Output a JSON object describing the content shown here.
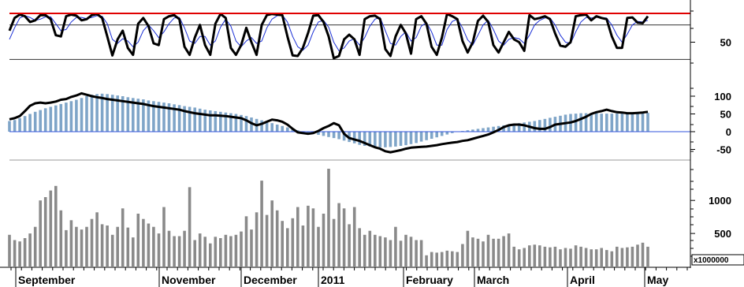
{
  "chart_data": [
    {
      "type": "line",
      "panel": "oscillator",
      "ylim": [
        0,
        100
      ],
      "yticks": [
        "50"
      ],
      "reference_lines": [
        100,
        80,
        20
      ],
      "colors": {
        "main": "#000000",
        "signal": "#1a2fd6",
        "ceiling": "#e00000",
        "guides": "#333333"
      },
      "series": [
        {
          "values": [
            70,
            92,
            98,
            95,
            85,
            88,
            97,
            97,
            90,
            62,
            60,
            95,
            98,
            96,
            88,
            90,
            97,
            99,
            92,
            60,
            27,
            55,
            70,
            40,
            28,
            82,
            92,
            78,
            48,
            45,
            90,
            95,
            97,
            90,
            42,
            28,
            58,
            80,
            45,
            28,
            82,
            99,
            92,
            40,
            28,
            45,
            75,
            50,
            28,
            80,
            97,
            99,
            98,
            97,
            60,
            27,
            26,
            40,
            66,
            96,
            97,
            85,
            60,
            22,
            26,
            55,
            63,
            55,
            28,
            90,
            95,
            96,
            90,
            38,
            26,
            60,
            80,
            65,
            30,
            90,
            95,
            82,
            42,
            28,
            58,
            99,
            95,
            90,
            52,
            32,
            50,
            87,
            96,
            85,
            45,
            32,
            50,
            68,
            55,
            50,
            35,
            97,
            90,
            92,
            95,
            90,
            65,
            44,
            42,
            50,
            95,
            97,
            98,
            88,
            95,
            92,
            90,
            60,
            40,
            40,
            92,
            93,
            84,
            83,
            95
          ]
        },
        {
          "values": [
            55,
            75,
            92,
            96,
            93,
            88,
            90,
            94,
            94,
            82,
            70,
            72,
            85,
            93,
            93,
            91,
            93,
            96,
            95,
            82,
            55,
            48,
            56,
            52,
            42,
            50,
            70,
            80,
            70,
            58,
            68,
            82,
            92,
            93,
            75,
            52,
            48,
            60,
            60,
            45,
            52,
            76,
            90,
            78,
            52,
            42,
            52,
            58,
            48,
            52,
            75,
            90,
            96,
            97,
            85,
            60,
            42,
            36,
            45,
            68,
            85,
            88,
            76,
            50,
            35,
            40,
            52,
            56,
            45,
            58,
            78,
            90,
            93,
            70,
            48,
            45,
            60,
            68,
            52,
            58,
            78,
            84,
            68,
            45,
            45,
            72,
            86,
            90,
            75,
            54,
            45,
            62,
            80,
            88,
            72,
            52,
            45,
            55,
            58,
            56,
            48,
            62,
            80,
            88,
            92,
            92,
            80,
            62,
            50,
            48,
            68,
            85,
            93,
            92,
            93,
            93,
            92,
            80,
            62,
            50,
            64,
            80,
            86,
            85,
            88
          ]
        }
      ]
    },
    {
      "type": "bar",
      "panel": "macd",
      "ylim": [
        -80,
        140
      ],
      "yticks": [
        "100",
        "50",
        "0",
        "-50"
      ],
      "colors": {
        "histogram": "#7fa5c8",
        "line": "#000000",
        "zero": "#3355dd"
      },
      "series": [
        {
          "values": [
            30,
            33,
            38,
            44,
            50,
            56,
            61,
            66,
            70,
            74,
            78,
            82,
            86,
            90,
            95,
            100,
            104,
            106,
            107,
            106,
            104,
            102,
            100,
            97,
            95,
            93,
            91,
            88,
            86,
            84,
            82,
            80,
            77,
            75,
            72,
            70,
            68,
            65,
            62,
            60,
            58,
            56,
            54,
            52,
            50,
            47,
            44,
            40,
            36,
            32,
            28,
            24,
            20,
            16,
            12,
            8,
            4,
            0,
            -3,
            -6,
            -9,
            -12,
            -15,
            -18,
            -21,
            -25,
            -29,
            -33,
            -37,
            -40,
            -42,
            -43,
            -44,
            -44,
            -43,
            -42,
            -40,
            -38,
            -35,
            -32,
            -28,
            -24,
            -20,
            -16,
            -12,
            -8,
            -4,
            0,
            2,
            4,
            6,
            8,
            10,
            12,
            14,
            16,
            18,
            20,
            22,
            24,
            26,
            28,
            30,
            33,
            36,
            39,
            42,
            45,
            48,
            50,
            51,
            52,
            52,
            52,
            52,
            51,
            51,
            51,
            51,
            51,
            51,
            51,
            51,
            52,
            53
          ]
        },
        {
          "values": [
            35,
            38,
            44,
            58,
            73,
            80,
            82,
            80,
            82,
            85,
            90,
            92,
            98,
            102,
            108,
            104,
            100,
            97,
            95,
            92,
            90,
            88,
            86,
            84,
            82,
            80,
            78,
            75,
            72,
            70,
            68,
            66,
            64,
            62,
            58,
            55,
            52,
            50,
            48,
            46,
            46,
            45,
            44,
            42,
            40,
            38,
            32,
            24,
            18,
            22,
            28,
            34,
            32,
            28,
            20,
            8,
            -2,
            -4,
            -6,
            -4,
            2,
            10,
            16,
            24,
            18,
            -6,
            -18,
            -22,
            -26,
            -32,
            -38,
            -44,
            -48,
            -55,
            -58,
            -55,
            -52,
            -48,
            -45,
            -44,
            -43,
            -42,
            -40,
            -38,
            -35,
            -33,
            -31,
            -29,
            -26,
            -24,
            -20,
            -16,
            -12,
            -8,
            -2,
            5,
            13,
            18,
            20,
            20,
            18,
            14,
            10,
            8,
            8,
            13,
            20,
            22,
            24,
            26,
            30,
            36,
            42,
            50,
            55,
            58,
            62,
            58,
            55,
            54,
            52,
            52,
            53,
            54,
            56
          ]
        }
      ]
    },
    {
      "type": "bar",
      "panel": "volume",
      "ylim": [
        0,
        1800
      ],
      "yticks": [
        "1000",
        "500"
      ],
      "multiplier_label": "x1000000",
      "colors": {
        "bars": "#8a8a8a"
      },
      "x_month_labels": [
        "September",
        "November",
        "December",
        "2011",
        "February",
        "March",
        "April",
        "May"
      ],
      "values": [
        480,
        400,
        380,
        430,
        500,
        600,
        1000,
        1050,
        1150,
        1220,
        850,
        550,
        700,
        600,
        560,
        600,
        720,
        820,
        640,
        620,
        480,
        600,
        880,
        590,
        440,
        800,
        720,
        650,
        600,
        500,
        900,
        540,
        460,
        460,
        540,
        1200,
        400,
        500,
        450,
        350,
        450,
        430,
        480,
        460,
        480,
        530,
        760,
        560,
        820,
        1300,
        780,
        1000,
        850,
        690,
        580,
        730,
        900,
        620,
        920,
        880,
        600,
        800,
        1480,
        720,
        960,
        880,
        640,
        900,
        580,
        480,
        540,
        480,
        460,
        440,
        400,
        600,
        390,
        480,
        450,
        400,
        400,
        170,
        220,
        210,
        220,
        240,
        230,
        220,
        340,
        540,
        440,
        420,
        380,
        480,
        420,
        420,
        460,
        500,
        300,
        260,
        280,
        320,
        330,
        320,
        300,
        290,
        300,
        260,
        280,
        270,
        320,
        300,
        280,
        260,
        260,
        280,
        250,
        230,
        300,
        280,
        290,
        300,
        330,
        360,
        300
      ]
    }
  ]
}
